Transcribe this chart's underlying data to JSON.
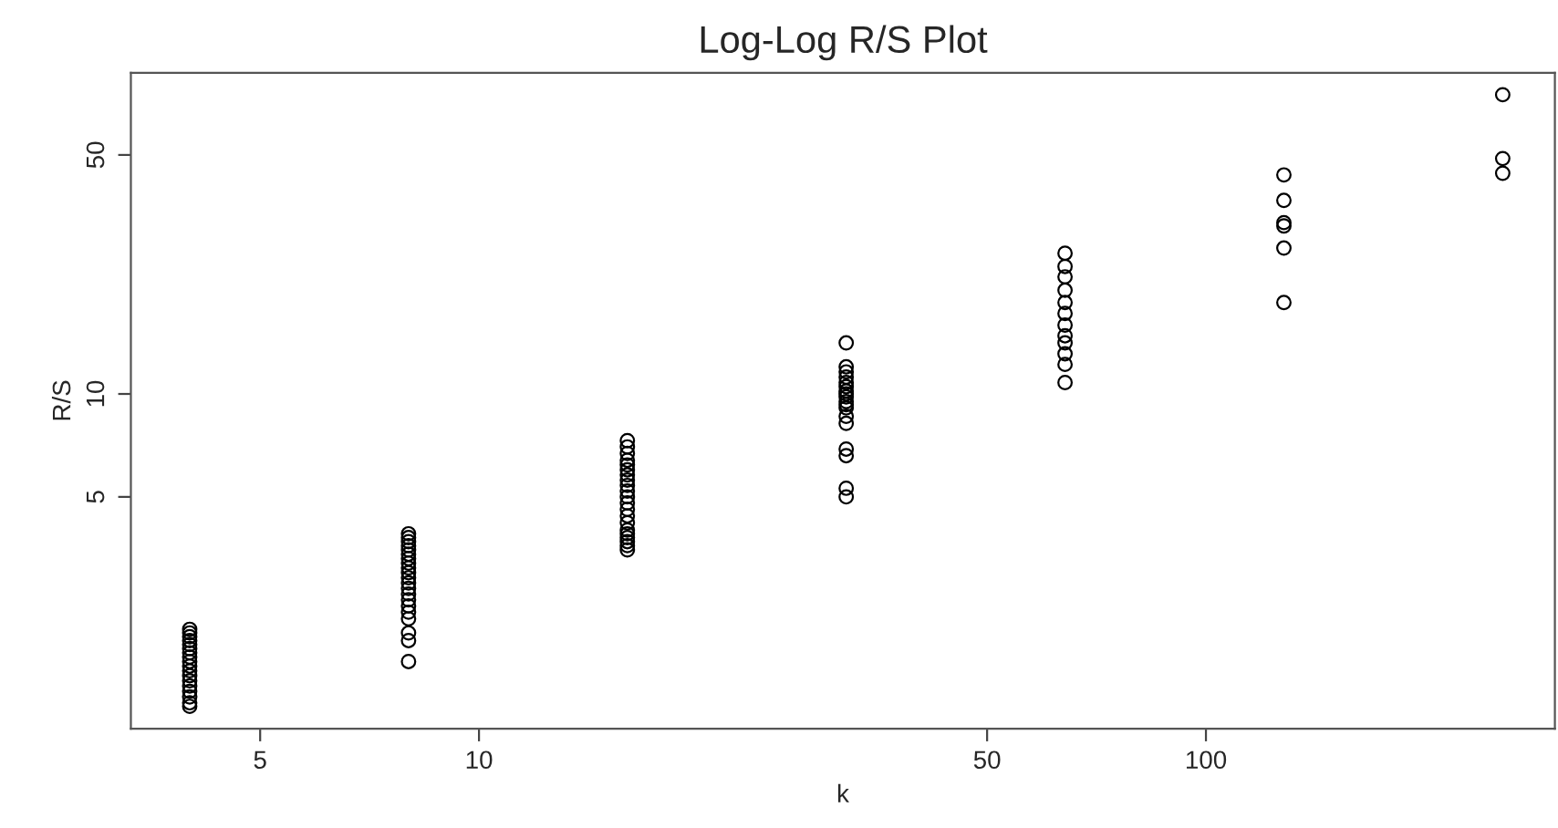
{
  "chart_data": {
    "type": "scatter",
    "title": "Log-Log R/S Plot",
    "xlabel": "k",
    "ylabel": "R/S",
    "log": "xy",
    "marker": "circle",
    "grid": false,
    "xlim": [
      3.32,
      302
    ],
    "ylim": [
      1.05,
      86.9
    ],
    "xticks": [
      5,
      10,
      50,
      100
    ],
    "yticks": [
      5,
      10,
      50
    ],
    "series": [
      {
        "color": "#000000",
        "x": [
          4,
          4,
          4,
          4,
          4,
          4,
          4,
          4,
          4,
          4,
          4,
          4,
          4,
          4,
          4,
          4,
          4,
          4,
          8,
          8,
          8,
          8,
          8,
          8,
          8,
          8,
          8,
          8,
          8,
          8,
          8,
          8,
          8,
          8,
          8,
          8,
          8,
          8,
          8,
          16,
          16,
          16,
          16,
          16,
          16,
          16,
          16,
          16,
          16,
          16,
          16,
          16,
          16,
          16,
          16,
          16,
          16,
          16,
          16,
          16,
          32,
          32,
          32,
          32,
          32,
          32,
          32,
          32,
          32,
          32,
          32,
          32,
          32,
          32,
          32,
          32,
          32,
          32,
          64,
          64,
          64,
          64,
          64,
          64,
          64,
          64,
          64,
          64,
          64,
          64,
          128,
          128,
          128,
          128,
          128,
          128,
          256,
          256,
          256
        ],
        "values": [
          2.05,
          2.0,
          1.95,
          1.9,
          1.85,
          1.8,
          1.75,
          1.7,
          1.65,
          1.6,
          1.55,
          1.5,
          1.45,
          1.4,
          1.35,
          1.3,
          1.25,
          1.22,
          3.9,
          3.8,
          3.7,
          3.6,
          3.5,
          3.4,
          3.3,
          3.2,
          3.1,
          3.0,
          2.9,
          2.8,
          2.7,
          2.6,
          2.5,
          2.4,
          2.3,
          2.2,
          2.0,
          1.9,
          1.65,
          7.3,
          7.0,
          6.7,
          6.4,
          6.2,
          6.0,
          5.8,
          5.6,
          5.4,
          5.2,
          5.0,
          4.8,
          4.6,
          4.4,
          4.2,
          4.0,
          3.9,
          3.8,
          3.7,
          3.6,
          3.5,
          14.1,
          12.0,
          11.6,
          11.2,
          10.8,
          10.5,
          10.2,
          10.0,
          9.8,
          9.5,
          9.3,
          9.1,
          8.6,
          8.2,
          6.9,
          6.6,
          5.3,
          5.0,
          25.8,
          23.6,
          22.0,
          20.1,
          18.5,
          17.2,
          15.9,
          14.8,
          14.1,
          13.1,
          12.2,
          10.8,
          43.7,
          36.8,
          31.7,
          31.0,
          26.7,
          18.5,
          75.0,
          48.8,
          44.2
        ]
      }
    ]
  }
}
